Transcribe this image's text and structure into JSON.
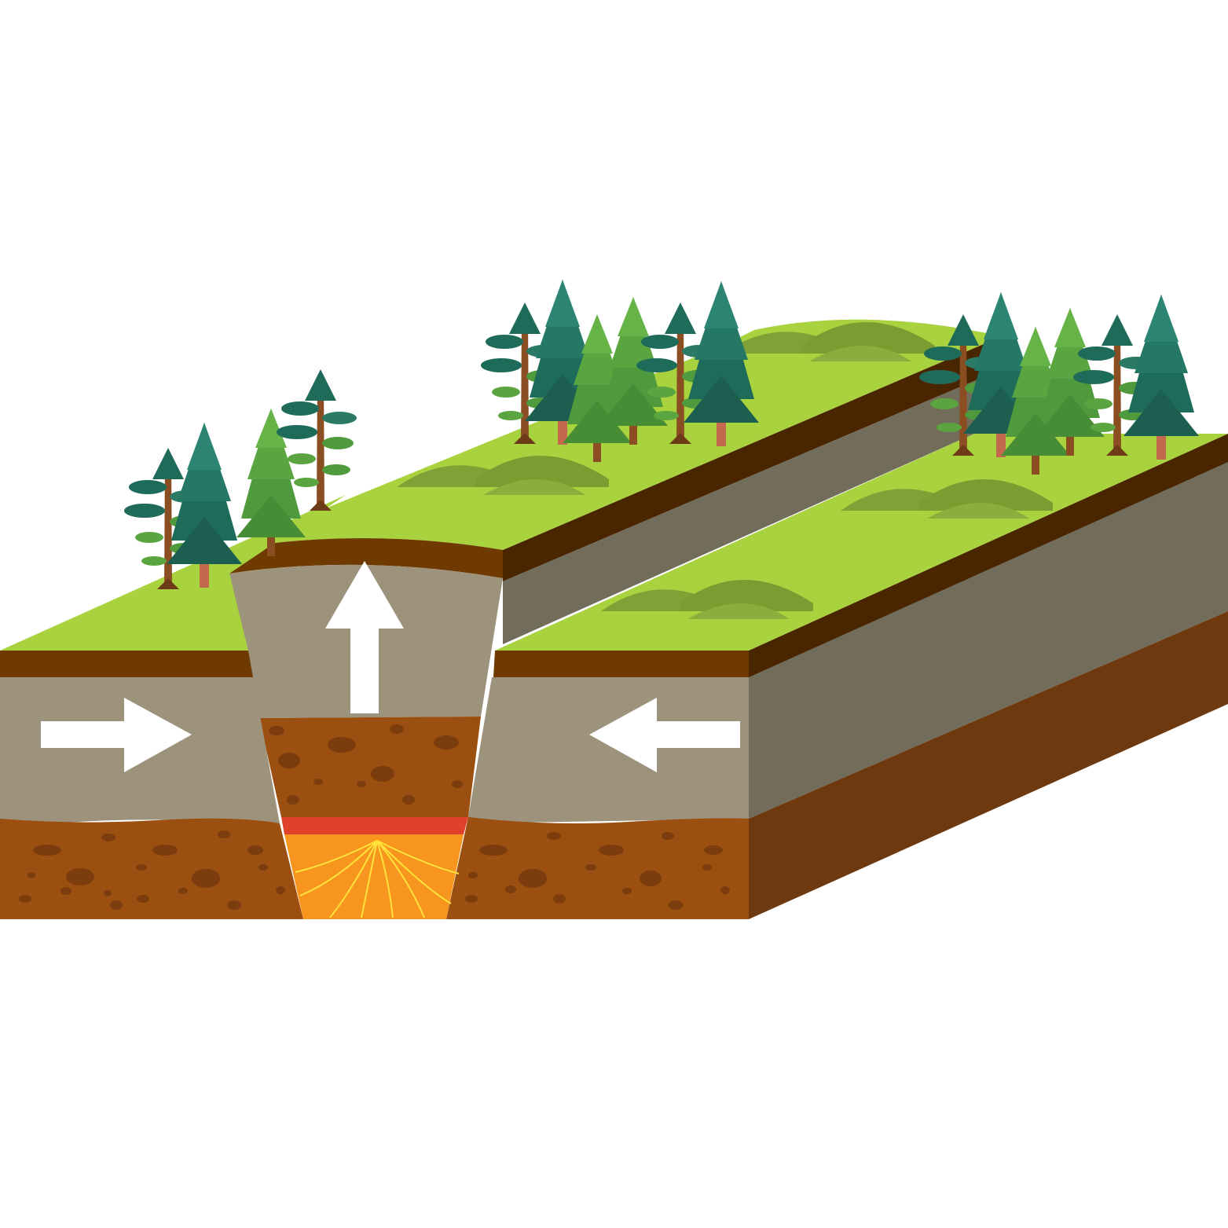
{
  "diagram": {
    "kind": "reverse-fault-block",
    "arrows": [
      {
        "name": "compression-arrow-left",
        "direction": "right"
      },
      {
        "name": "compression-arrow-right",
        "direction": "left"
      },
      {
        "name": "uplift-arrow",
        "direction": "up"
      }
    ],
    "colors": {
      "grass": "#a9d23f",
      "topsoil": "#6f3a00",
      "topsoil_dark": "#4a2600",
      "rock_front": "#9d927c",
      "rock_side": "#726c5b",
      "soil": "#9b4f10",
      "soil_side": "#6f390f",
      "soil_spot": "#7b3c0e",
      "hill": "#7fa136",
      "magma_crust": "#e0412a",
      "magma": "#f7951f",
      "magma_line": "#ffe23a",
      "arrow": "#ffffff",
      "tree_pine": "#1f6b5a",
      "tree_fir": "#5aa53f",
      "trunk": "#8b4e23"
    },
    "icons": [
      "pine-tree-icon",
      "fir-tree-icon",
      "leafy-pine-icon",
      "hill-icon"
    ]
  }
}
